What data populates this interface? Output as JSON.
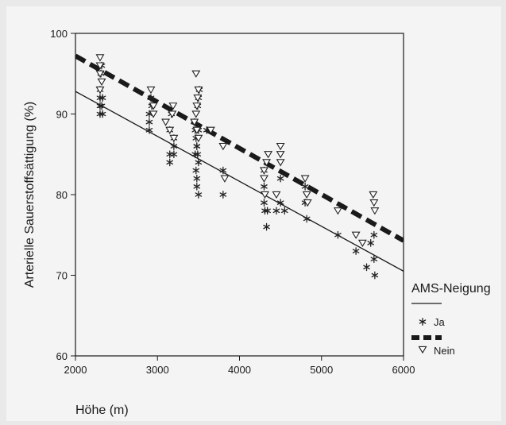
{
  "chart_data": {
    "type": "scatter",
    "xlabel": "Höhe (m)",
    "ylabel": "Arterielle Sauerstoffsättigung (%)",
    "xlim": [
      2000,
      6000
    ],
    "ylim": [
      60,
      100
    ],
    "x_ticks": [
      2000,
      3000,
      4000,
      5000,
      6000
    ],
    "y_ticks": [
      60,
      70,
      80,
      90,
      100
    ],
    "grid": false,
    "legend": {
      "title": "AMS-Neigung",
      "placement": "right",
      "entries": [
        {
          "label": "Ja",
          "marker": "asterisk",
          "line": "solid"
        },
        {
          "label": "Nein",
          "marker": "triangle-down",
          "line": "dashed"
        }
      ]
    },
    "series": [
      {
        "name": "Ja",
        "marker": "asterisk",
        "color": "#222222",
        "points": [
          [
            2300,
            92
          ],
          [
            2300,
            91
          ],
          [
            2300,
            90
          ],
          [
            2330,
            92
          ],
          [
            2320,
            91
          ],
          [
            2330,
            90
          ],
          [
            2310,
            95
          ],
          [
            2320,
            96
          ],
          [
            2300,
            93
          ],
          [
            2900,
            90
          ],
          [
            2900,
            89
          ],
          [
            2930,
            91
          ],
          [
            2920,
            92
          ],
          [
            2900,
            88
          ],
          [
            3150,
            85
          ],
          [
            3150,
            84
          ],
          [
            3150,
            88
          ],
          [
            3200,
            85
          ],
          [
            3200,
            86
          ],
          [
            3200,
            87
          ],
          [
            3170,
            90
          ],
          [
            3450,
            89
          ],
          [
            3460,
            88
          ],
          [
            3470,
            87
          ],
          [
            3480,
            86
          ],
          [
            3490,
            85
          ],
          [
            3500,
            84
          ],
          [
            3470,
            83
          ],
          [
            3480,
            82
          ],
          [
            3480,
            81
          ],
          [
            3500,
            80
          ],
          [
            3490,
            91
          ],
          [
            3500,
            92
          ],
          [
            3510,
            93
          ],
          [
            3480,
            86
          ],
          [
            3460,
            85
          ],
          [
            3500,
            88
          ],
          [
            3600,
            88
          ],
          [
            3800,
            83
          ],
          [
            3800,
            80
          ],
          [
            4300,
            83
          ],
          [
            4300,
            81
          ],
          [
            4300,
            79
          ],
          [
            4310,
            78
          ],
          [
            4330,
            76
          ],
          [
            4340,
            78
          ],
          [
            4450,
            78
          ],
          [
            4500,
            82
          ],
          [
            4500,
            79
          ],
          [
            4550,
            78
          ],
          [
            4800,
            79
          ],
          [
            4800,
            81
          ],
          [
            4820,
            77
          ],
          [
            5200,
            75
          ],
          [
            5420,
            73
          ],
          [
            5550,
            71
          ],
          [
            5600,
            74
          ],
          [
            5640,
            75
          ],
          [
            5640,
            72
          ],
          [
            5650,
            70
          ]
        ]
      },
      {
        "name": "Nein",
        "marker": "triangle-down",
        "color": "#222222",
        "points": [
          [
            2300,
            97
          ],
          [
            2300,
            96
          ],
          [
            2300,
            95
          ],
          [
            2320,
            94
          ],
          [
            2300,
            93
          ],
          [
            2920,
            93
          ],
          [
            2950,
            91
          ],
          [
            2950,
            90
          ],
          [
            3100,
            89
          ],
          [
            3150,
            88
          ],
          [
            3200,
            87
          ],
          [
            3180,
            90
          ],
          [
            3190,
            91
          ],
          [
            3450,
            89
          ],
          [
            3470,
            90
          ],
          [
            3480,
            91
          ],
          [
            3490,
            92
          ],
          [
            3500,
            93
          ],
          [
            3470,
            95
          ],
          [
            3480,
            88
          ],
          [
            3500,
            87
          ],
          [
            3650,
            88
          ],
          [
            3800,
            86
          ],
          [
            3820,
            82
          ],
          [
            4300,
            83
          ],
          [
            4300,
            82
          ],
          [
            4310,
            80
          ],
          [
            4330,
            84
          ],
          [
            4350,
            85
          ],
          [
            4450,
            80
          ],
          [
            4500,
            86
          ],
          [
            4500,
            85
          ],
          [
            4500,
            84
          ],
          [
            4800,
            82
          ],
          [
            4820,
            80
          ],
          [
            4830,
            79
          ],
          [
            5200,
            78
          ],
          [
            5420,
            75
          ],
          [
            5500,
            74
          ],
          [
            5630,
            80
          ],
          [
            5640,
            79
          ],
          [
            5650,
            78
          ]
        ]
      }
    ],
    "fit_lines": [
      {
        "series": "Ja",
        "style": "solid",
        "x": [
          2000,
          6000
        ],
        "y": [
          92.8,
          70.5
        ]
      },
      {
        "series": "Nein",
        "style": "dashed",
        "x": [
          2000,
          6000
        ],
        "y": [
          97.2,
          74.3
        ]
      }
    ]
  }
}
